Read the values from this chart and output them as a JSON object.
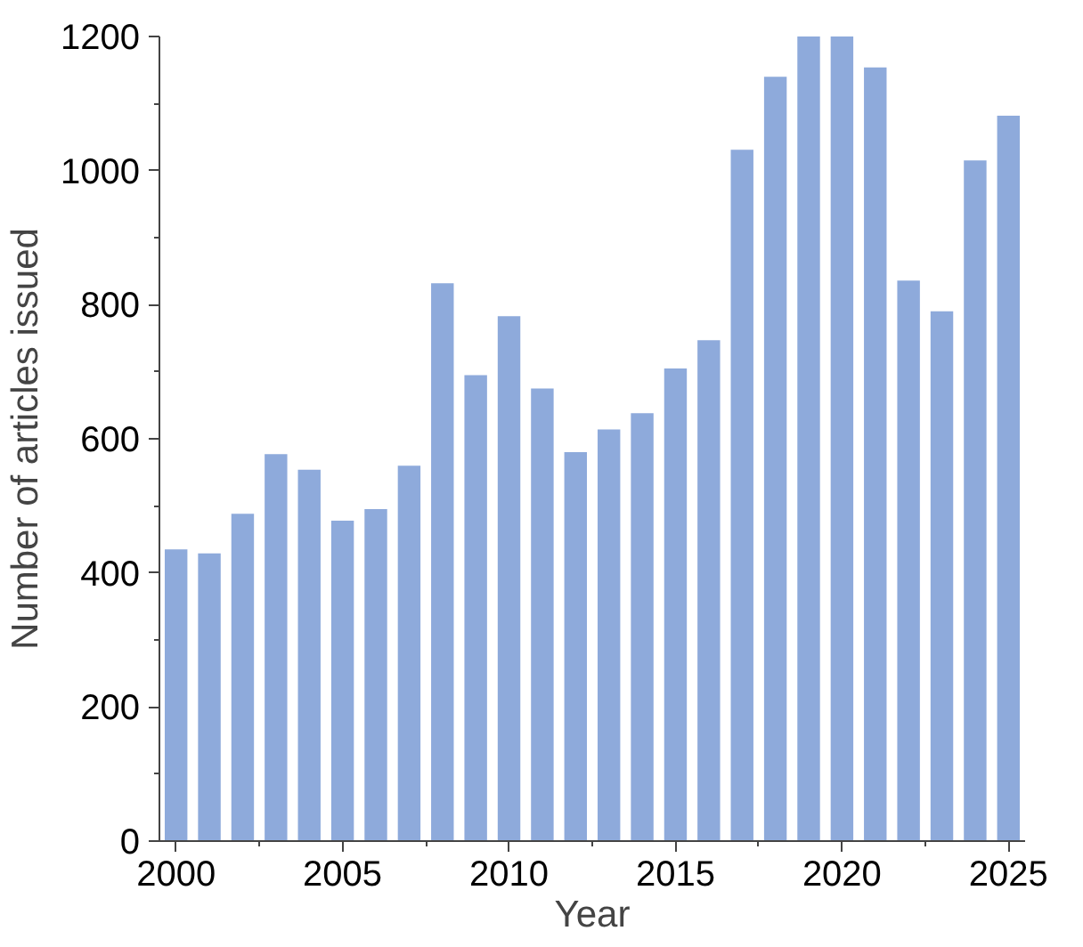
{
  "chart_data": {
    "type": "bar",
    "xlabel": "Year",
    "ylabel": "Number of articles issued",
    "x": [
      2000,
      2001,
      2002,
      2003,
      2004,
      2005,
      2006,
      2007,
      2008,
      2009,
      2010,
      2011,
      2012,
      2013,
      2014,
      2015,
      2016,
      2017,
      2018,
      2019,
      2020,
      2021,
      2022,
      2023,
      2024,
      2025
    ],
    "values": [
      435,
      429,
      488,
      577,
      554,
      478,
      495,
      560,
      832,
      695,
      783,
      675,
      580,
      614,
      638,
      705,
      747,
      1031,
      1140,
      1200,
      1200,
      1154,
      836,
      790,
      1015,
      1082
    ],
    "color": "#8eaadb",
    "xlim": [
      1999.5,
      2025.5
    ],
    "xticks": [
      2000,
      2005,
      2010,
      2015,
      2020,
      2025
    ],
    "ylim": [
      0,
      1200
    ],
    "yticks": [
      0,
      200,
      400,
      600,
      800,
      1000,
      1200
    ],
    "grid": false
  }
}
